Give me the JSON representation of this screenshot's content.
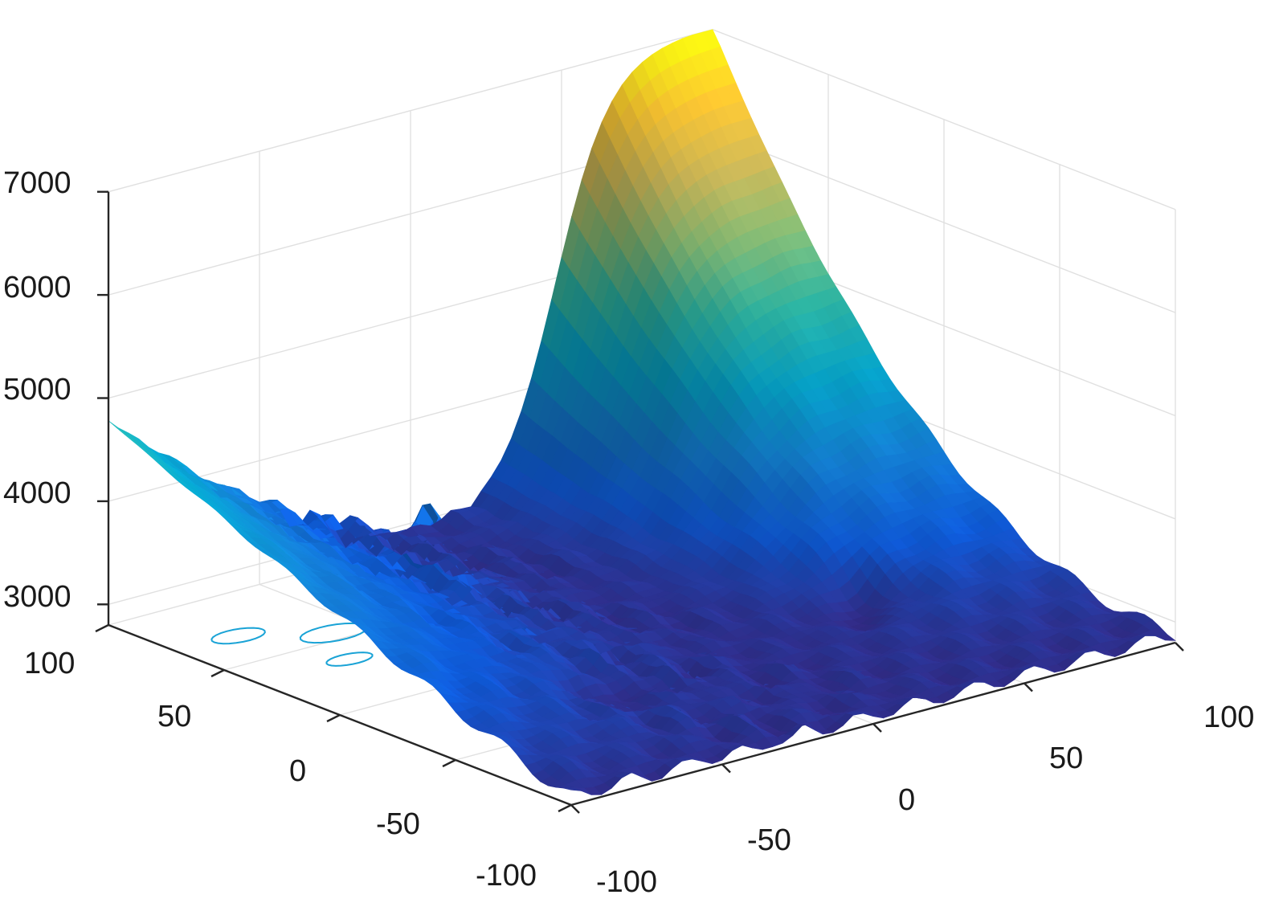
{
  "chart_data": {
    "type": "surface",
    "title": "",
    "xlabel": "",
    "ylabel": "",
    "zlabel": "",
    "xlim": [
      -100,
      100
    ],
    "ylim": [
      -100,
      100
    ],
    "zlim": [
      2800,
      7000
    ],
    "x_ticks": [
      -100,
      -50,
      0,
      50,
      100
    ],
    "y_ticks": [
      -100,
      -50,
      0,
      50,
      100
    ],
    "z_ticks": [
      3000,
      4000,
      5000,
      6000,
      7000
    ],
    "x_tick_labels": [
      "-100",
      "-50",
      "0",
      "50",
      "100"
    ],
    "y_tick_labels": [
      "-100",
      "-50",
      "0",
      "50",
      "100"
    ],
    "z_tick_labels": [
      "3000",
      "4000",
      "5000",
      "6000",
      "7000"
    ],
    "grid": true,
    "colormap": "parula",
    "contour_projection": true,
    "surface_samples": {
      "corner_x-100_y100": 4800,
      "corner_x100_y100": 7000,
      "corner_x100_y-100": 2850,
      "corner_x-100_y-100": 2900,
      "minimum_left_basin": 2850,
      "minimum_right_basin": 2850
    },
    "colors": [
      "#352a87",
      "#0f5cdd",
      "#1481d6",
      "#06a4ca",
      "#2eb7a4",
      "#87bf77",
      "#d1bb59",
      "#fec832",
      "#f9fb0e"
    ]
  }
}
